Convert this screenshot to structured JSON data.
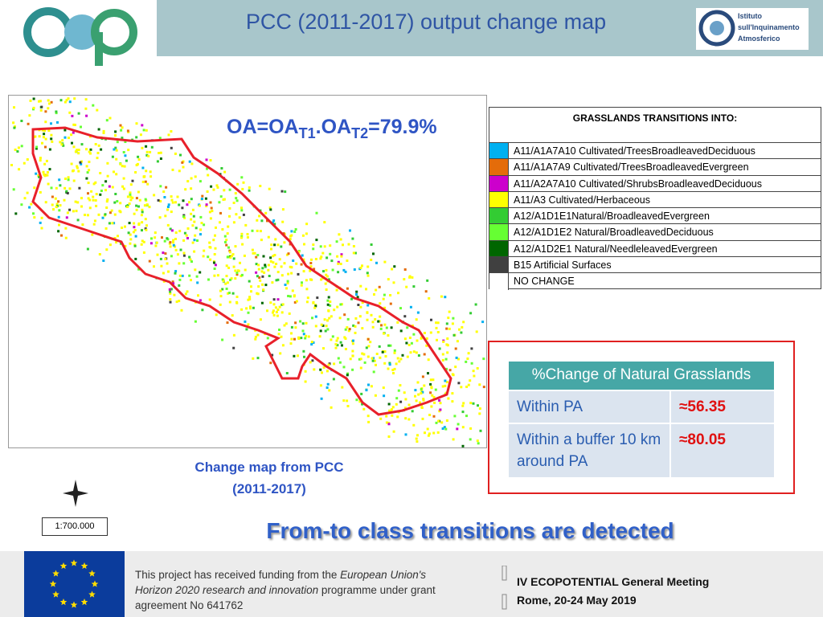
{
  "header": {
    "title": "PCC (2011-2017) output change map",
    "logo_text": [
      "Istituto",
      "sull'Inquinamento",
      "Atmosferico"
    ]
  },
  "map": {
    "accuracy": [
      "OA=OA",
      "T1",
      ".OA",
      "T2",
      "=79.9%"
    ],
    "caption": [
      "Change map from PCC",
      "(2011-2017)"
    ],
    "scale": "1:700.000"
  },
  "legend": {
    "title": "GRASSLANDS TRANSITIONS INTO:",
    "rows": [
      {
        "color": "#00b0f0",
        "label": "A11/A1A7A10 Cultivated/TreesBroadleavedDeciduous"
      },
      {
        "color": "#e46c0a",
        "label": "A11/A1A7A9 Cultivated/TreesBroadleavedEvergreen"
      },
      {
        "color": "#cc00cc",
        "label": "A11/A2A7A10 Cultivated/ShrubsBroadleavedDeciduous"
      },
      {
        "color": "#ffff00",
        "label": "A11/A3 Cultivated/Herbaceous"
      },
      {
        "color": "#33cc33",
        "label": "A12/A1D1E1Natural/BroadleavedEvergreen"
      },
      {
        "color": "#66ff33",
        "label": "A12/A1D1E2 Natural/BroadleavedDeciduous"
      },
      {
        "color": "#006600",
        "label": "A12/A1D2E1 Natural/NeedleleavedEvergreen"
      },
      {
        "color": "#404040",
        "label": "B15 Artificial Surfaces"
      },
      {
        "color": "#ffffff",
        "label": "NO CHANGE"
      }
    ]
  },
  "results_table": {
    "header": "%Change of Natural Grasslands",
    "rows": [
      [
        "Within PA",
        "≈56.35"
      ],
      [
        "Within a buffer 10 km around PA",
        "≈80.05"
      ]
    ]
  },
  "banner": "From-to class transitions are detected",
  "footer": {
    "funding": [
      {
        "text": "This project has received funding from the ",
        "italic": false
      },
      {
        "text": "European Union's Horizon 2020 research and innovation",
        "italic": true
      },
      {
        "text": " programme under grant agreement No 641762",
        "italic": false
      }
    ],
    "meeting": "IV ECOPOTENTIAL General Meeting",
    "place_date": "Rome, 20-24 May 2019"
  }
}
